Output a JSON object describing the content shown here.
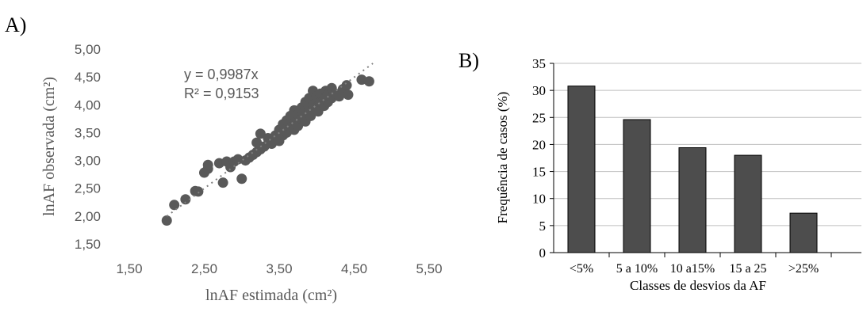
{
  "panels": {
    "a_label": "A)",
    "b_label": "B)"
  },
  "chart_data": [
    {
      "type": "scatter",
      "panel": "A)",
      "xlabel": "lnAF estimada (cm²)",
      "ylabel": "lnAF observada (cm²)",
      "xlim": [
        1.5,
        5.5
      ],
      "ylim": [
        1.5,
        5.0
      ],
      "xticks": [
        "1,50",
        "2,50",
        "3,50",
        "4,50",
        "5,50"
      ],
      "yticks": [
        "1,50",
        "2,00",
        "2,50",
        "3,00",
        "3,50",
        "4,00",
        "4,50",
        "5,00"
      ],
      "grid": false,
      "marker_color": "#595959",
      "trendline": {
        "slope": 0.9987,
        "x_range": [
          2.0,
          4.75
        ],
        "style": "dotted"
      },
      "annotations": [
        "y = 0,9987x",
        "R² = 0,9153"
      ],
      "points": [
        [
          2.0,
          1.92
        ],
        [
          2.1,
          2.2
        ],
        [
          2.25,
          2.3
        ],
        [
          2.38,
          2.45
        ],
        [
          2.42,
          2.44
        ],
        [
          2.5,
          2.78
        ],
        [
          2.55,
          2.85
        ],
        [
          2.55,
          2.92
        ],
        [
          2.7,
          2.95
        ],
        [
          2.75,
          2.6
        ],
        [
          2.8,
          2.98
        ],
        [
          2.85,
          2.88
        ],
        [
          2.9,
          2.98
        ],
        [
          2.95,
          3.02
        ],
        [
          3.0,
          2.67
        ],
        [
          3.05,
          3.0
        ],
        [
          3.1,
          3.05
        ],
        [
          3.15,
          3.1
        ],
        [
          3.2,
          3.15
        ],
        [
          3.25,
          3.2
        ],
        [
          3.2,
          3.32
        ],
        [
          3.25,
          3.48
        ],
        [
          3.3,
          3.25
        ],
        [
          3.35,
          3.4
        ],
        [
          3.4,
          3.3
        ],
        [
          3.45,
          3.45
        ],
        [
          3.5,
          3.35
        ],
        [
          3.5,
          3.55
        ],
        [
          3.55,
          3.45
        ],
        [
          3.55,
          3.65
        ],
        [
          3.6,
          3.5
        ],
        [
          3.6,
          3.72
        ],
        [
          3.65,
          3.6
        ],
        [
          3.65,
          3.8
        ],
        [
          3.7,
          3.55
        ],
        [
          3.7,
          3.9
        ],
        [
          3.72,
          3.7
        ],
        [
          3.75,
          3.62
        ],
        [
          3.75,
          3.82
        ],
        [
          3.8,
          3.75
        ],
        [
          3.8,
          3.95
        ],
        [
          3.82,
          3.85
        ],
        [
          3.85,
          3.7
        ],
        [
          3.85,
          4.05
        ],
        [
          3.9,
          3.9
        ],
        [
          3.9,
          4.12
        ],
        [
          3.92,
          3.8
        ],
        [
          3.95,
          4.0
        ],
        [
          3.95,
          4.25
        ],
        [
          4.0,
          3.95
        ],
        [
          4.0,
          4.15
        ],
        [
          4.02,
          3.88
        ],
        [
          4.05,
          4.05
        ],
        [
          4.05,
          4.2
        ],
        [
          4.1,
          4.1
        ],
        [
          4.1,
          3.98
        ],
        [
          4.12,
          4.25
        ],
        [
          4.15,
          4.05
        ],
        [
          4.15,
          4.18
        ],
        [
          4.2,
          4.12
        ],
        [
          4.2,
          4.3
        ],
        [
          4.25,
          4.2
        ],
        [
          4.3,
          4.15
        ],
        [
          4.35,
          4.28
        ],
        [
          4.4,
          4.35
        ],
        [
          4.42,
          4.18
        ],
        [
          4.6,
          4.45
        ],
        [
          4.7,
          4.42
        ]
      ]
    },
    {
      "type": "bar",
      "panel": "B)",
      "categories": [
        "<5%",
        "5 a 10%",
        "10 a15%",
        "15 a 25",
        ">25%"
      ],
      "values": [
        30.8,
        24.6,
        19.4,
        18.0,
        7.3
      ],
      "xlabel": "Classes de desvios da AF",
      "ylabel": "Frequência de casos (%)",
      "ylim": [
        0,
        35
      ],
      "yticks": [
        "0",
        "5",
        "10",
        "15",
        "20",
        "25",
        "30",
        "35"
      ],
      "grid": true,
      "bar_color": "#4d4d4d"
    }
  ]
}
